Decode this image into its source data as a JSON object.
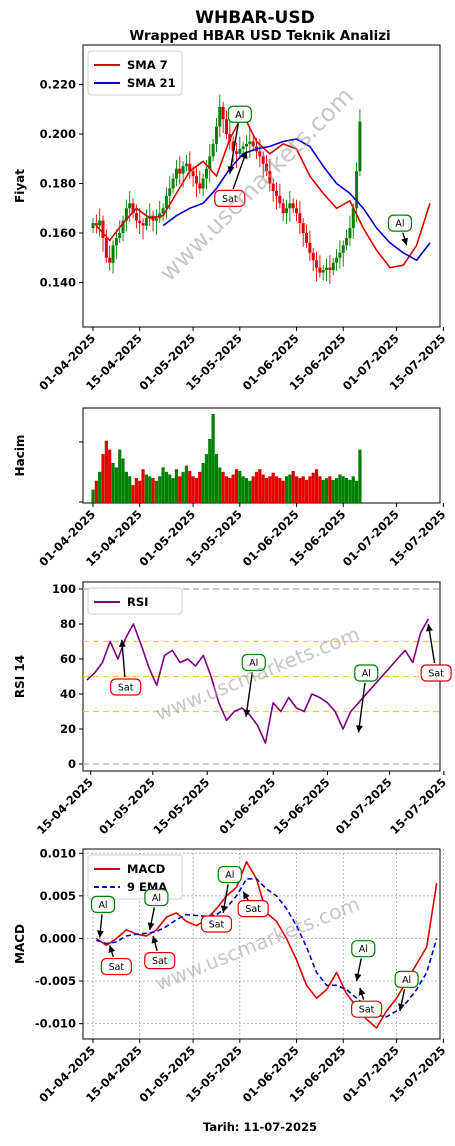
{
  "header": {
    "title": "WHBAR-USD",
    "subtitle": "Wrapped HBAR USD Teknik Analizi",
    "footer": "Tarih: 11-07-2025"
  },
  "watermark": "www.uscmarkets.com",
  "colors": {
    "up": "#008000",
    "down": "#e00000",
    "sma7": "#e00000",
    "sma21": "#0000cc",
    "rsi": "#800080",
    "macd": "#e00000",
    "ema9": "#0000cc",
    "level_major": "#bbbbbb",
    "level_minor": "#f5c842",
    "buy": "#008000",
    "sell": "#e00000"
  },
  "chart_data": [
    {
      "type": "line",
      "id": "price",
      "ylabel": "Fiyat",
      "ylim": [
        0.122,
        0.236
      ],
      "yticks": [
        0.14,
        0.16,
        0.18,
        0.2,
        0.22
      ],
      "ytick_labels": [
        "0.140",
        "0.160",
        "0.180",
        "0.200",
        "0.220"
      ],
      "xlim": [
        "2025-03-29",
        "2025-07-14"
      ],
      "xticks": [
        "2025-04-01",
        "2025-04-15",
        "2025-05-01",
        "2025-05-15",
        "2025-06-01",
        "2025-06-15",
        "2025-07-01",
        "2025-07-15"
      ],
      "xtick_labels": [
        "01-04-2025",
        "15-04-2025",
        "01-05-2025",
        "15-05-2025",
        "01-06-2025",
        "15-06-2025",
        "01-07-2025",
        "15-07-2025"
      ],
      "legend_position": "top-left",
      "series": [
        {
          "name": "SMA 7",
          "key": "sma7",
          "x": [
            "2025-04-02",
            "2025-04-06",
            "2025-04-10",
            "2025-04-14",
            "2025-04-18",
            "2025-04-22",
            "2025-04-26",
            "2025-04-30",
            "2025-05-04",
            "2025-05-08",
            "2025-05-12",
            "2025-05-16",
            "2025-05-20",
            "2025-05-24",
            "2025-05-28",
            "2025-06-01",
            "2025-06-05",
            "2025-06-09",
            "2025-06-13",
            "2025-06-17",
            "2025-06-21",
            "2025-06-25",
            "2025-06-29",
            "2025-07-03",
            "2025-07-07",
            "2025-07-11"
          ],
          "values": [
            0.163,
            0.157,
            0.164,
            0.17,
            0.166,
            0.167,
            0.176,
            0.185,
            0.189,
            0.183,
            0.198,
            0.208,
            0.197,
            0.192,
            0.196,
            0.194,
            0.183,
            0.176,
            0.17,
            0.173,
            0.162,
            0.153,
            0.146,
            0.147,
            0.155,
            0.172
          ]
        },
        {
          "name": "SMA 21",
          "key": "sma21",
          "x": [
            "2025-04-22",
            "2025-04-26",
            "2025-04-30",
            "2025-05-04",
            "2025-05-08",
            "2025-05-12",
            "2025-05-16",
            "2025-05-20",
            "2025-05-24",
            "2025-05-28",
            "2025-06-01",
            "2025-06-05",
            "2025-06-09",
            "2025-06-13",
            "2025-06-17",
            "2025-06-21",
            "2025-06-25",
            "2025-06-29",
            "2025-07-03",
            "2025-07-07",
            "2025-07-11"
          ],
          "values": [
            0.163,
            0.167,
            0.17,
            0.172,
            0.178,
            0.186,
            0.192,
            0.194,
            0.195,
            0.197,
            0.198,
            0.195,
            0.187,
            0.18,
            0.176,
            0.17,
            0.162,
            0.156,
            0.152,
            0.149,
            0.156
          ]
        }
      ],
      "candles": {
        "start": "2025-04-01",
        "open": [
          0.162,
          0.164,
          0.163,
          0.165,
          0.158,
          0.15,
          0.148,
          0.155,
          0.158,
          0.16,
          0.165,
          0.17,
          0.172,
          0.168,
          0.165,
          0.164,
          0.163,
          0.166,
          0.167,
          0.165,
          0.166,
          0.168,
          0.17,
          0.175,
          0.178,
          0.182,
          0.186,
          0.184,
          0.187,
          0.188,
          0.185,
          0.183,
          0.18,
          0.178,
          0.182,
          0.186,
          0.191,
          0.196,
          0.203,
          0.211,
          0.206,
          0.2,
          0.197,
          0.193,
          0.192,
          0.194,
          0.195,
          0.196,
          0.197,
          0.195,
          0.193,
          0.191,
          0.188,
          0.185,
          0.18,
          0.177,
          0.175,
          0.172,
          0.168,
          0.17,
          0.172,
          0.17,
          0.168,
          0.164,
          0.16,
          0.156,
          0.152,
          0.149,
          0.146,
          0.144,
          0.145,
          0.146,
          0.145,
          0.148,
          0.15,
          0.152,
          0.155,
          0.158,
          0.162,
          0.17,
          0.185
        ],
        "close": [
          0.164,
          0.163,
          0.165,
          0.158,
          0.15,
          0.148,
          0.155,
          0.158,
          0.16,
          0.165,
          0.17,
          0.172,
          0.168,
          0.165,
          0.164,
          0.163,
          0.166,
          0.167,
          0.165,
          0.166,
          0.168,
          0.17,
          0.175,
          0.178,
          0.182,
          0.186,
          0.184,
          0.187,
          0.188,
          0.185,
          0.183,
          0.18,
          0.178,
          0.182,
          0.186,
          0.191,
          0.196,
          0.203,
          0.211,
          0.206,
          0.2,
          0.197,
          0.193,
          0.192,
          0.194,
          0.195,
          0.196,
          0.197,
          0.195,
          0.193,
          0.191,
          0.188,
          0.185,
          0.18,
          0.177,
          0.175,
          0.172,
          0.168,
          0.17,
          0.172,
          0.17,
          0.168,
          0.164,
          0.16,
          0.156,
          0.152,
          0.149,
          0.146,
          0.144,
          0.145,
          0.146,
          0.145,
          0.148,
          0.15,
          0.152,
          0.155,
          0.158,
          0.162,
          0.17,
          0.185,
          0.205
        ],
        "volume": [
          0.15,
          0.25,
          0.35,
          0.55,
          0.7,
          0.6,
          0.45,
          0.4,
          0.6,
          0.5,
          0.35,
          0.3,
          0.2,
          0.28,
          0.25,
          0.38,
          0.32,
          0.3,
          0.28,
          0.25,
          0.3,
          0.4,
          0.35,
          0.32,
          0.28,
          0.38,
          0.3,
          0.35,
          0.42,
          0.36,
          0.3,
          0.28,
          0.35,
          0.45,
          0.55,
          0.72,
          1.0,
          0.55,
          0.4,
          0.35,
          0.3,
          0.28,
          0.32,
          0.38,
          0.36,
          0.3,
          0.28,
          0.25,
          0.3,
          0.35,
          0.38,
          0.32,
          0.28,
          0.3,
          0.34,
          0.3,
          0.28,
          0.25,
          0.3,
          0.32,
          0.36,
          0.3,
          0.28,
          0.3,
          0.26,
          0.3,
          0.34,
          0.38,
          0.3,
          0.26,
          0.28,
          0.3,
          0.26,
          0.28,
          0.32,
          0.3,
          0.28,
          0.26,
          0.3,
          0.25,
          0.6
        ]
      },
      "signals": [
        {
          "label": "Al",
          "kind": "buy",
          "x": "2025-05-15",
          "y": 0.208,
          "tx": "2025-05-12",
          "ty": 0.184
        },
        {
          "label": "Sat",
          "kind": "sell",
          "x": "2025-05-12",
          "y": 0.174,
          "tx": "2025-05-17",
          "ty": 0.193
        },
        {
          "label": "Al",
          "kind": "buy",
          "x": "2025-07-02",
          "y": 0.164,
          "tx": "2025-07-04",
          "ty": 0.155
        }
      ]
    },
    {
      "type": "bar",
      "id": "volume",
      "ylabel": "Hacim",
      "note": "bars use candle volume; green when close >= open"
    },
    {
      "type": "line",
      "id": "rsi",
      "ylabel": "RSI 14",
      "ylim": [
        -4,
        104
      ],
      "yticks": [
        0,
        20,
        40,
        60,
        80,
        100
      ],
      "ytick_labels": [
        "0",
        "20",
        "40",
        "60",
        "80",
        "100"
      ],
      "levels_major": [
        0,
        100
      ],
      "levels_minor": [
        30,
        50,
        70
      ],
      "xlim": [
        "2025-04-13",
        "2025-07-14"
      ],
      "xticks": [
        "2025-04-15",
        "2025-05-01",
        "2025-05-15",
        "2025-06-01",
        "2025-06-15",
        "2025-07-01",
        "2025-07-15"
      ],
      "xtick_labels": [
        "15-04-2025",
        "01-05-2025",
        "15-05-2025",
        "01-06-2025",
        "15-06-2025",
        "01-07-2025",
        "15-07-2025"
      ],
      "legend_position": "top-left",
      "series": [
        {
          "name": "RSI",
          "key": "rsi",
          "x": [
            "2025-04-14",
            "2025-04-16",
            "2025-04-18",
            "2025-04-20",
            "2025-04-22",
            "2025-04-24",
            "2025-04-26",
            "2025-04-28",
            "2025-04-30",
            "2025-05-02",
            "2025-05-04",
            "2025-05-06",
            "2025-05-08",
            "2025-05-10",
            "2025-05-12",
            "2025-05-14",
            "2025-05-16",
            "2025-05-18",
            "2025-05-20",
            "2025-05-22",
            "2025-05-24",
            "2025-05-26",
            "2025-05-28",
            "2025-05-30",
            "2025-06-01",
            "2025-06-03",
            "2025-06-05",
            "2025-06-07",
            "2025-06-09",
            "2025-06-11",
            "2025-06-13",
            "2025-06-15",
            "2025-06-17",
            "2025-06-19",
            "2025-06-21",
            "2025-06-23",
            "2025-06-25",
            "2025-06-27",
            "2025-06-29",
            "2025-07-01",
            "2025-07-03",
            "2025-07-05",
            "2025-07-07",
            "2025-07-09",
            "2025-07-11"
          ],
          "values": [
            48,
            52,
            58,
            70,
            60,
            72,
            80,
            68,
            55,
            45,
            62,
            65,
            58,
            60,
            56,
            62,
            50,
            35,
            25,
            30,
            32,
            28,
            22,
            12,
            35,
            30,
            38,
            32,
            30,
            40,
            38,
            35,
            30,
            20,
            30,
            35,
            40,
            45,
            50,
            55,
            60,
            65,
            58,
            75,
            83
          ]
        }
      ],
      "signals": [
        {
          "label": "Sat",
          "kind": "sell",
          "x": "2025-04-24",
          "y": 44,
          "tx": "2025-04-23",
          "ty": 71
        },
        {
          "label": "Al",
          "kind": "buy",
          "x": "2025-05-27",
          "y": 58,
          "tx": "2025-05-25",
          "ty": 27
        },
        {
          "label": "Al",
          "kind": "buy",
          "x": "2025-06-25",
          "y": 52,
          "tx": "2025-06-23",
          "ty": 18
        },
        {
          "label": "Sat",
          "kind": "sell",
          "x": "2025-07-13",
          "y": 52,
          "tx": "2025-07-11",
          "ty": 80
        }
      ]
    },
    {
      "type": "line",
      "id": "macd",
      "ylabel": "MACD",
      "ylim": [
        -0.0118,
        0.0105
      ],
      "yticks": [
        -0.01,
        -0.005,
        0.0,
        0.005,
        0.01
      ],
      "ytick_labels": [
        "-0.010",
        "-0.005",
        "0.000",
        "0.005",
        "0.010"
      ],
      "xlim": [
        "2025-03-29",
        "2025-07-14"
      ],
      "xticks": [
        "2025-04-01",
        "2025-04-15",
        "2025-05-01",
        "2025-05-15",
        "2025-06-01",
        "2025-06-15",
        "2025-07-01",
        "2025-07-15"
      ],
      "xtick_labels": [
        "01-04-2025",
        "15-04-2025",
        "01-05-2025",
        "15-05-2025",
        "01-06-2025",
        "15-06-2025",
        "01-07-2025",
        "15-07-2025"
      ],
      "legend_position": "top-left",
      "series": [
        {
          "name": "MACD",
          "key": "macd",
          "x": [
            "2025-04-02",
            "2025-04-05",
            "2025-04-08",
            "2025-04-11",
            "2025-04-14",
            "2025-04-17",
            "2025-04-20",
            "2025-04-23",
            "2025-04-26",
            "2025-04-29",
            "2025-05-02",
            "2025-05-05",
            "2025-05-08",
            "2025-05-11",
            "2025-05-14",
            "2025-05-17",
            "2025-05-20",
            "2025-05-23",
            "2025-05-26",
            "2025-05-29",
            "2025-06-01",
            "2025-06-04",
            "2025-06-07",
            "2025-06-10",
            "2025-06-13",
            "2025-06-16",
            "2025-06-19",
            "2025-06-22",
            "2025-06-25",
            "2025-06-28",
            "2025-07-01",
            "2025-07-04",
            "2025-07-07",
            "2025-07-10",
            "2025-07-13"
          ],
          "values": [
            0.0,
            -0.0008,
            0.0,
            0.001,
            0.0005,
            0.0003,
            0.001,
            0.0025,
            0.003,
            0.002,
            0.0015,
            0.0022,
            0.0035,
            0.005,
            0.006,
            0.009,
            0.007,
            0.003,
            0.002,
            0.0,
            -0.0025,
            -0.0055,
            -0.007,
            -0.006,
            -0.004,
            -0.0065,
            -0.008,
            -0.0095,
            -0.0105,
            -0.0085,
            -0.007,
            -0.005,
            -0.003,
            -0.001,
            0.0065
          ]
        },
        {
          "name": "9 EMA",
          "key": "ema9",
          "x": [
            "2025-04-02",
            "2025-04-05",
            "2025-04-08",
            "2025-04-11",
            "2025-04-14",
            "2025-04-17",
            "2025-04-20",
            "2025-04-23",
            "2025-04-26",
            "2025-04-29",
            "2025-05-02",
            "2025-05-05",
            "2025-05-08",
            "2025-05-11",
            "2025-05-14",
            "2025-05-17",
            "2025-05-20",
            "2025-05-23",
            "2025-05-26",
            "2025-05-29",
            "2025-06-01",
            "2025-06-04",
            "2025-06-07",
            "2025-06-10",
            "2025-06-13",
            "2025-06-16",
            "2025-06-19",
            "2025-06-22",
            "2025-06-25",
            "2025-06-28",
            "2025-07-01",
            "2025-07-04",
            "2025-07-07",
            "2025-07-10",
            "2025-07-13"
          ],
          "values": [
            -0.0002,
            -0.0006,
            -0.0004,
            0.0003,
            0.0005,
            0.0006,
            0.0008,
            0.0014,
            0.0022,
            0.0028,
            0.0027,
            0.0026,
            0.0028,
            0.0036,
            0.005,
            0.007,
            0.007,
            0.0058,
            0.005,
            0.0035,
            0.0015,
            -0.001,
            -0.004,
            -0.0055,
            -0.0055,
            -0.006,
            -0.007,
            -0.008,
            -0.009,
            -0.0092,
            -0.0085,
            -0.0075,
            -0.006,
            -0.004,
            0.0
          ]
        }
      ],
      "signals": [
        {
          "label": "Al",
          "kind": "buy",
          "x": "2025-04-04",
          "y": 0.004,
          "tx": "2025-04-03",
          "ty": 0.0001
        },
        {
          "label": "Sat",
          "kind": "sell",
          "x": "2025-04-08",
          "y": -0.0033,
          "tx": "2025-04-06",
          "ty": -0.0008
        },
        {
          "label": "Al",
          "kind": "buy",
          "x": "2025-04-20",
          "y": 0.0048,
          "tx": "2025-04-18",
          "ty": 0.001
        },
        {
          "label": "Sat",
          "kind": "sell",
          "x": "2025-04-21",
          "y": -0.0026,
          "tx": "2025-04-19",
          "ty": 0.0003
        },
        {
          "label": "Sat",
          "kind": "sell",
          "x": "2025-05-08",
          "y": 0.0017,
          "tx": "2025-05-06",
          "ty": 0.0025
        },
        {
          "label": "Al",
          "kind": "buy",
          "x": "2025-05-12",
          "y": 0.0075,
          "tx": "2025-05-10",
          "ty": 0.003
        },
        {
          "label": "Sat",
          "kind": "sell",
          "x": "2025-05-19",
          "y": 0.0035,
          "tx": "2025-05-16",
          "ty": 0.0055
        },
        {
          "label": "Al",
          "kind": "buy",
          "x": "2025-06-21",
          "y": -0.0012,
          "tx": "2025-06-19",
          "ty": -0.005
        },
        {
          "label": "Sat",
          "kind": "sell",
          "x": "2025-06-22",
          "y": -0.0083,
          "tx": "2025-06-20",
          "ty": -0.0058
        },
        {
          "label": "Al",
          "kind": "buy",
          "x": "2025-07-04",
          "y": -0.0048,
          "tx": "2025-07-02",
          "ty": -0.0085
        }
      ]
    }
  ]
}
